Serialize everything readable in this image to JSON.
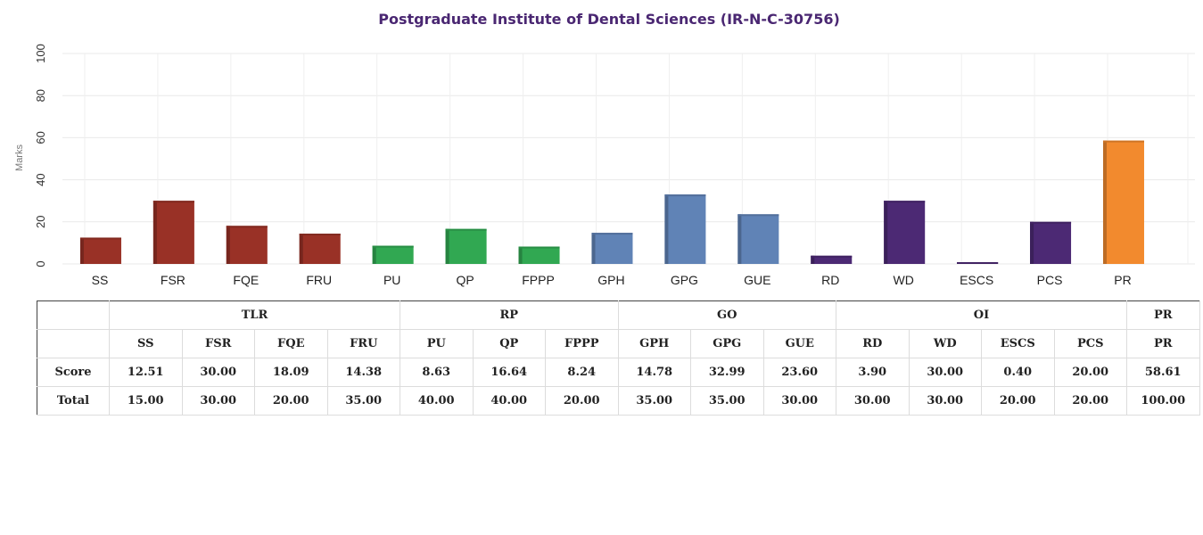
{
  "chart_data": {
    "type": "bar",
    "title": "Postgraduate Institute of Dental Sciences (IR-N-C-30756)",
    "xlabel": "",
    "ylabel": "Marks",
    "ylim": [
      0,
      100
    ],
    "yticks": [
      "0",
      "20",
      "40",
      "60",
      "80",
      "100"
    ],
    "grid": true,
    "categories": [
      "SS",
      "FSR",
      "FQE",
      "FRU",
      "PU",
      "QP",
      "FPPP",
      "GPH",
      "GPG",
      "GUE",
      "RD",
      "WD",
      "ESCS",
      "PCS",
      "PR"
    ],
    "values": [
      12.51,
      30.0,
      18.09,
      14.38,
      8.63,
      16.64,
      8.24,
      14.78,
      32.99,
      23.6,
      3.9,
      30.0,
      0.4,
      20.0,
      58.61
    ],
    "bar_colors": [
      "#993126",
      "#993126",
      "#993126",
      "#993126",
      "#31a852",
      "#31a852",
      "#31a852",
      "#6083b6",
      "#6083b6",
      "#6083b6",
      "#4c2974",
      "#4c2974",
      "#4c2974",
      "#4c2974",
      "#f28a2e"
    ]
  },
  "table": {
    "groups": [
      {
        "label": "TLR",
        "span": 4
      },
      {
        "label": "RP",
        "span": 3
      },
      {
        "label": "GO",
        "span": 3
      },
      {
        "label": "OI",
        "span": 4
      },
      {
        "label": "PR",
        "span": 1
      }
    ],
    "columns": [
      "SS",
      "FSR",
      "FQE",
      "FRU",
      "PU",
      "QP",
      "FPPP",
      "GPH",
      "GPG",
      "GUE",
      "RD",
      "WD",
      "ESCS",
      "PCS",
      "PR"
    ],
    "rows": [
      {
        "label": "Score",
        "values": [
          "12.51",
          "30.00",
          "18.09",
          "14.38",
          "8.63",
          "16.64",
          "8.24",
          "14.78",
          "32.99",
          "23.60",
          "3.90",
          "30.00",
          "0.40",
          "20.00",
          "58.61"
        ]
      },
      {
        "label": "Total",
        "values": [
          "15.00",
          "30.00",
          "20.00",
          "35.00",
          "40.00",
          "40.00",
          "20.00",
          "35.00",
          "35.00",
          "30.00",
          "30.00",
          "30.00",
          "20.00",
          "20.00",
          "100.00"
        ]
      }
    ]
  }
}
